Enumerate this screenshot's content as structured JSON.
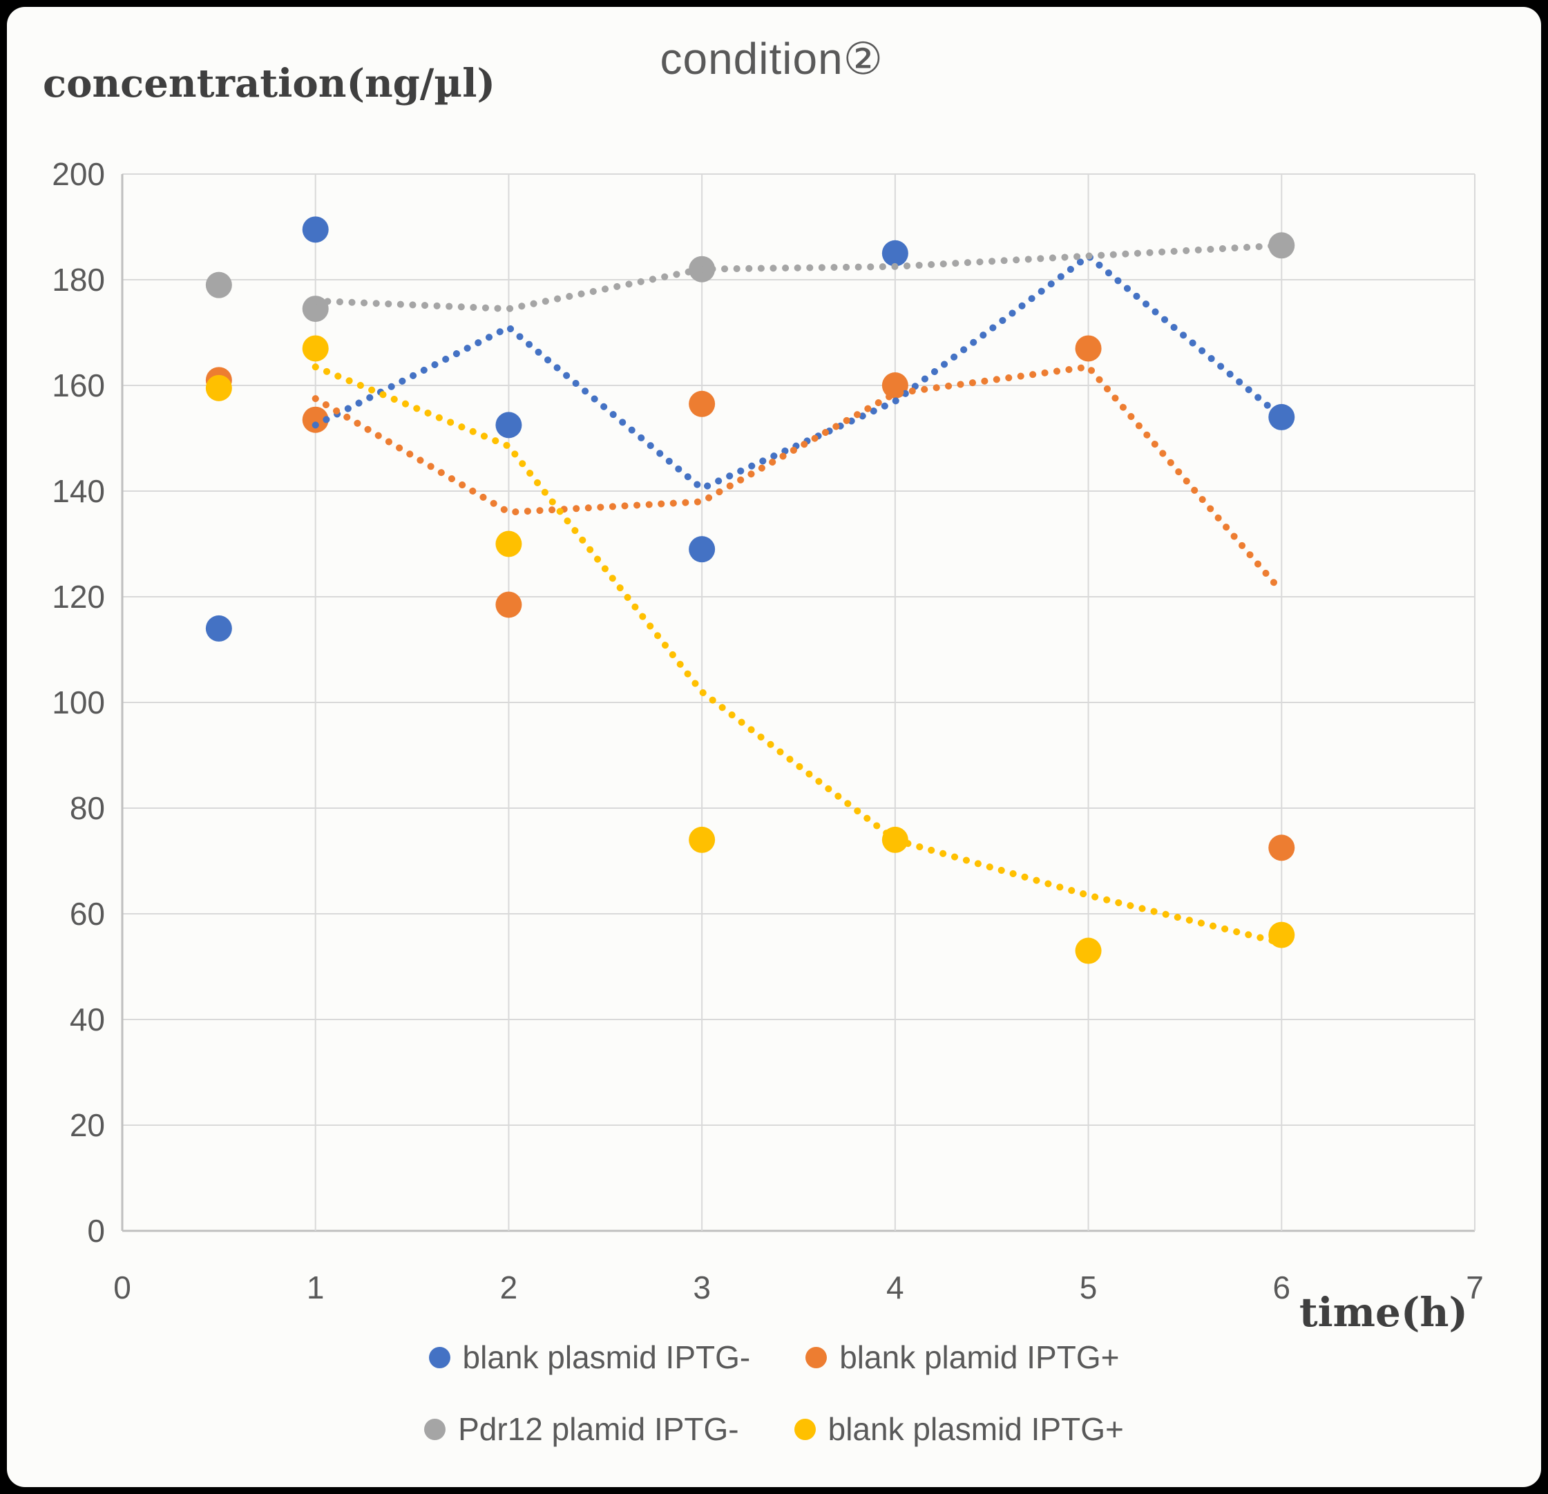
{
  "chart_data": {
    "type": "scatter",
    "title": "condition②",
    "ylabel": "concentration(ng/µl)",
    "xlabel": "time(h)",
    "xlim": [
      0,
      7
    ],
    "ylim": [
      0,
      200
    ],
    "x_ticks": [
      0,
      1,
      2,
      3,
      4,
      5,
      6,
      7
    ],
    "y_ticks": [
      0,
      20,
      40,
      60,
      80,
      100,
      120,
      140,
      160,
      180,
      200
    ],
    "grid": true,
    "legend_position": "bottom",
    "series": [
      {
        "name": "blank plasmid IPTG-",
        "color": "#4472C4",
        "points": [
          [
            0.5,
            114
          ],
          [
            1,
            189.5
          ],
          [
            2,
            152.5
          ],
          [
            3,
            129
          ],
          [
            4,
            185
          ],
          [
            6,
            154
          ]
        ],
        "trend_dotted": [
          [
            1,
            152.5
          ],
          [
            2,
            171
          ],
          [
            3,
            140.5
          ],
          [
            4,
            157
          ],
          [
            5,
            184.5
          ],
          [
            6,
            154
          ]
        ]
      },
      {
        "name": "blank plamid IPTG+",
        "color": "#ED7D31",
        "points": [
          [
            0.5,
            161
          ],
          [
            1,
            153.5
          ],
          [
            2,
            118.5
          ],
          [
            3,
            156.5
          ],
          [
            4,
            160
          ],
          [
            5,
            167
          ],
          [
            6,
            72.5
          ]
        ],
        "trend_dotted": [
          [
            1,
            157.5
          ],
          [
            2,
            136
          ],
          [
            3,
            138
          ],
          [
            4,
            158.5
          ],
          [
            5,
            163.5
          ],
          [
            6,
            121
          ]
        ]
      },
      {
        "name": "Pdr12 plamid IPTG-",
        "color": "#A5A5A5",
        "points": [
          [
            0.5,
            179
          ],
          [
            1,
            174.5
          ],
          [
            3,
            182
          ],
          [
            6,
            186.5
          ]
        ],
        "trend_dotted": [
          [
            1,
            176
          ],
          [
            2,
            174.5
          ],
          [
            3,
            182
          ],
          [
            4,
            182.5
          ],
          [
            5,
            184.5
          ],
          [
            6,
            186.5
          ]
        ]
      },
      {
        "name": "blank plasmid IPTG+",
        "color": "#FFC000",
        "points": [
          [
            0.5,
            159.5
          ],
          [
            1,
            167
          ],
          [
            2,
            130
          ],
          [
            3,
            74
          ],
          [
            4,
            74
          ],
          [
            5,
            53
          ],
          [
            6,
            56
          ]
        ],
        "trend_dotted": [
          [
            1,
            163.5
          ],
          [
            2,
            148.5
          ],
          [
            3,
            102
          ],
          [
            4,
            74
          ],
          [
            5,
            63.5
          ],
          [
            6,
            54.5
          ]
        ]
      }
    ],
    "colors": {
      "grid": "#D9D9D9",
      "axis": "#BFBFBF",
      "tick_text": "#595959"
    }
  }
}
